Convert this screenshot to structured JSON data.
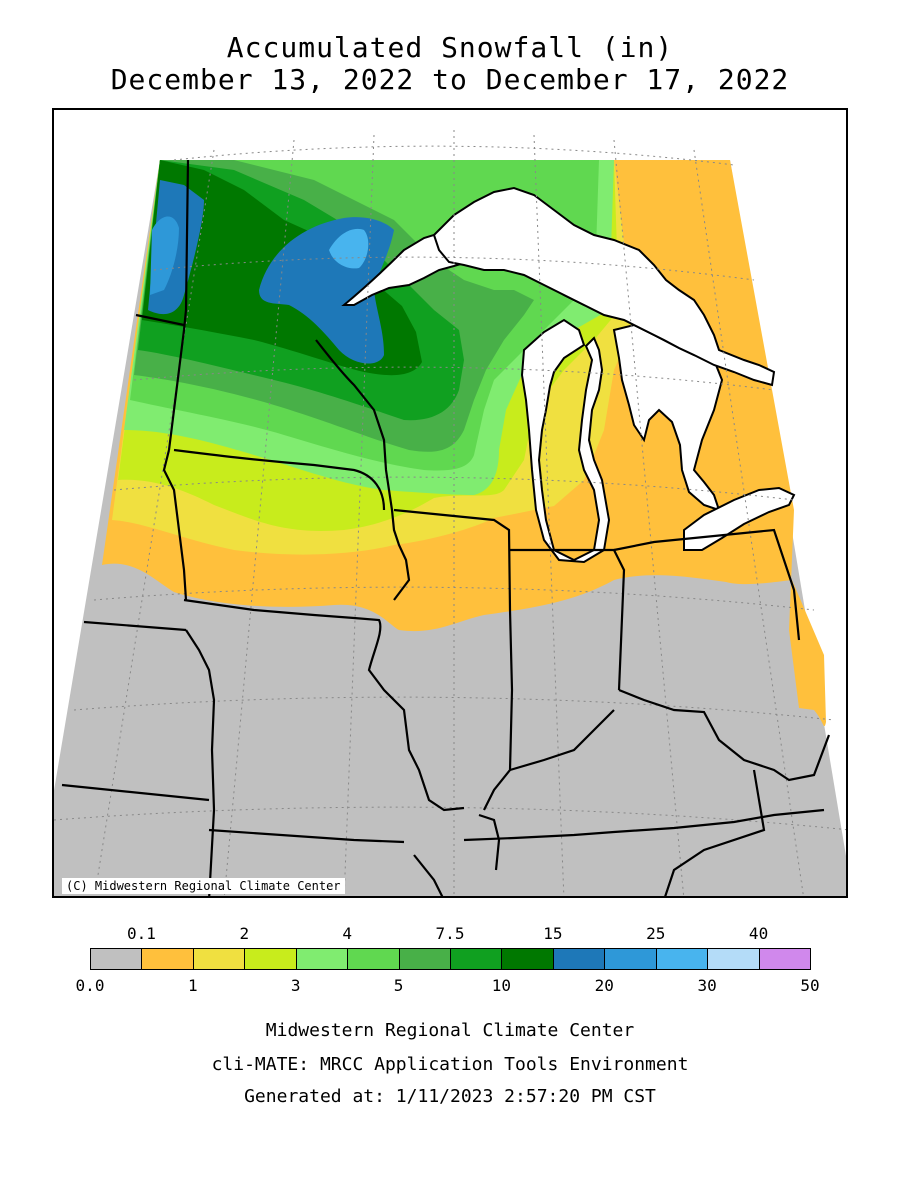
{
  "title": {
    "line1": "Accumulated Snowfall (in)",
    "line2": "December 13, 2022 to December 17, 2022"
  },
  "map": {
    "credit": "(C) Midwestern Regional Climate Center",
    "colors": {
      "gray": "#C0C0C0",
      "orange": "#FFC03C",
      "yellow": "#F0E040",
      "lime": "#C8EC1C",
      "lightgreen": "#80EC70",
      "green5": "#60D850",
      "green75": "#48B048",
      "green10": "#10A020",
      "darkgreen": "#007800",
      "blue20": "#1E78B8",
      "blue25": "#2E98D8",
      "blue30": "#48B4EE",
      "lightblue": "#B4DCF8",
      "violet": "#D088EC"
    }
  },
  "legend": {
    "top_labels": [
      "0.1",
      "2",
      "4",
      "7.5",
      "15",
      "25",
      "40"
    ],
    "bottom_labels": [
      "0.0",
      "1",
      "3",
      "5",
      "10",
      "20",
      "30",
      "50"
    ],
    "colors": [
      "#C0C0C0",
      "#FFC03C",
      "#F0E040",
      "#C8EC1C",
      "#80EC70",
      "#60D850",
      "#48B048",
      "#10A020",
      "#007800",
      "#1E78B8",
      "#2E98D8",
      "#48B4EE",
      "#B4DCF8",
      "#D088EC"
    ]
  },
  "footer": {
    "line1": "Midwestern Regional Climate Center",
    "line2": "cli-MATE: MRCC Application Tools Environment",
    "line3": "Generated at: 1/11/2023 2:57:20 PM CST"
  }
}
